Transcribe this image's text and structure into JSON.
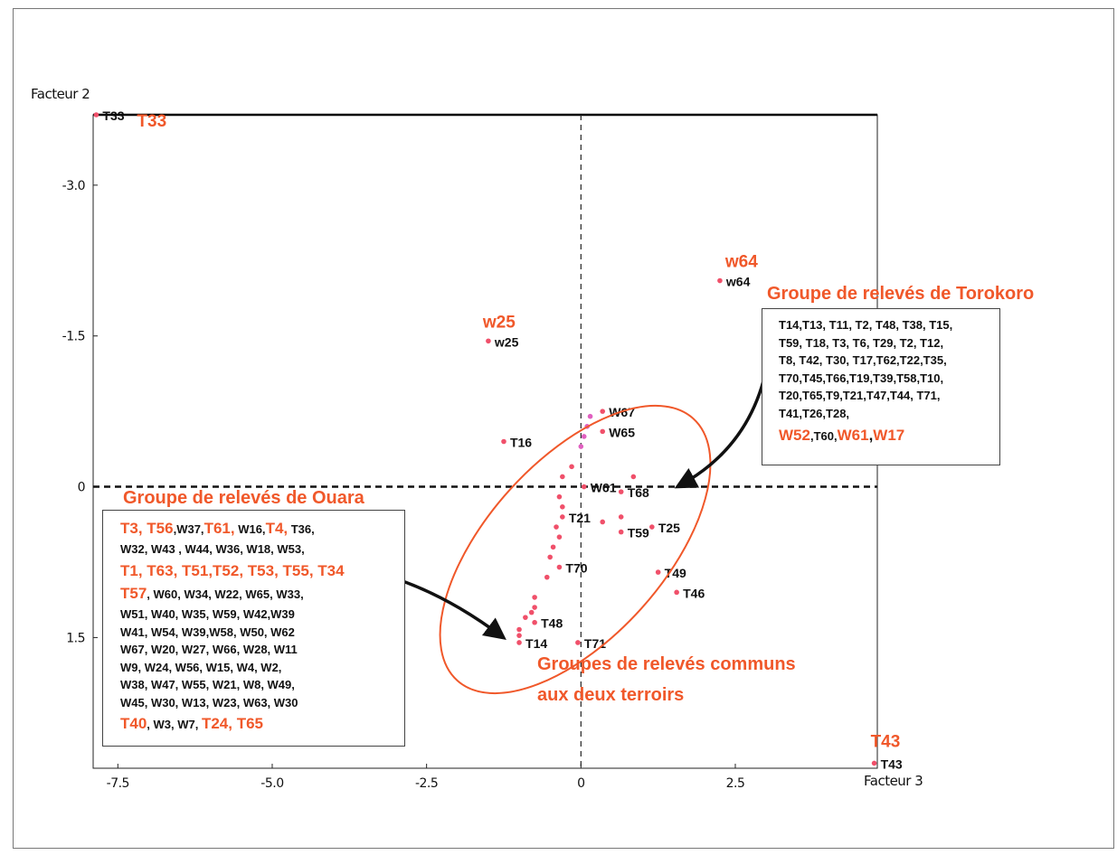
{
  "chart_data": {
    "type": "scatter",
    "xlabel": "Facteur 3",
    "ylabel": "Facteur 2",
    "xlim": [
      -7.9,
      4.8
    ],
    "ylim": [
      -3.7,
      2.8
    ],
    "x_ticks": [
      -7.5,
      -5.0,
      -2.5,
      0,
      2.5
    ],
    "x_tick_labels": [
      "-7.5",
      "-5.0",
      "-2.5",
      "0",
      "2.5"
    ],
    "y_ticks": [
      -3.0,
      -1.5,
      0,
      1.5
    ],
    "y_tick_labels": [
      "-3.0",
      "-1.5",
      "0",
      "1.5"
    ],
    "grid": false,
    "reference_lines": "dashed lines at x = 0 and y = 0",
    "colors": {
      "point": "#f0506a",
      "pink_point": "#e060c0",
      "accent": "#f0582a"
    },
    "labeled_points": [
      {
        "x": -7.85,
        "y": -3.7,
        "label": "T33",
        "big_label": "T33"
      },
      {
        "x": 2.25,
        "y": -2.05,
        "label": "w64",
        "big_label": "w64"
      },
      {
        "x": -1.5,
        "y": -1.45,
        "label": "w25",
        "big_label": "w25"
      },
      {
        "x": -1.25,
        "y": -0.45,
        "label": "T16"
      },
      {
        "x": 4.75,
        "y": 2.75,
        "label": "T43",
        "big_label": "T43"
      },
      {
        "x": 0.65,
        "y": 0.05,
        "label": "T68"
      },
      {
        "x": 1.15,
        "y": 0.4,
        "label": "T25"
      },
      {
        "x": 0.65,
        "y": 0.45,
        "label": "T59"
      },
      {
        "x": 1.25,
        "y": 0.85,
        "label": "T49"
      },
      {
        "x": 1.55,
        "y": 1.05,
        "label": "T46"
      },
      {
        "x": -0.05,
        "y": 1.55,
        "label": "T71"
      },
      {
        "x": -1.0,
        "y": 1.55,
        "label": "T14"
      },
      {
        "x": -0.75,
        "y": 1.35,
        "label": "T48"
      },
      {
        "x": -0.35,
        "y": 0.8,
        "label": "T70"
      },
      {
        "x": -0.3,
        "y": 0.3,
        "label": "T21"
      },
      {
        "x": 0.05,
        "y": 0.0,
        "label": "W61"
      },
      {
        "x": 0.35,
        "y": -0.75,
        "label": "W67"
      },
      {
        "x": 0.35,
        "y": -0.55,
        "label": "W65"
      }
    ],
    "unlabeled_points": [
      {
        "x": 0.15,
        "y": -0.7
      },
      {
        "x": 0.1,
        "y": -0.6
      },
      {
        "x": 0.05,
        "y": -0.5
      },
      {
        "x": 0.0,
        "y": -0.4
      },
      {
        "x": -0.15,
        "y": -0.2
      },
      {
        "x": -0.3,
        "y": -0.1
      },
      {
        "x": -0.35,
        "y": 0.1
      },
      {
        "x": -0.3,
        "y": 0.2
      },
      {
        "x": -0.4,
        "y": 0.4
      },
      {
        "x": -0.35,
        "y": 0.5
      },
      {
        "x": -0.45,
        "y": 0.6
      },
      {
        "x": -0.5,
        "y": 0.7
      },
      {
        "x": -0.55,
        "y": 0.9
      },
      {
        "x": -0.75,
        "y": 1.1
      },
      {
        "x": -0.75,
        "y": 1.2
      },
      {
        "x": -0.8,
        "y": 1.25
      },
      {
        "x": -0.9,
        "y": 1.3
      },
      {
        "x": -1.0,
        "y": 1.42
      },
      {
        "x": -1.0,
        "y": 1.48
      },
      {
        "x": 0.85,
        "y": -0.1
      },
      {
        "x": 0.65,
        "y": 0.3
      },
      {
        "x": 0.35,
        "y": 0.35
      }
    ],
    "annotations": [
      "Groupe de relevés de Torokoro",
      "Groupe de relevés de Ouara",
      "Groupes de relevés communs aux deux terroirs"
    ]
  },
  "axis_titles": {
    "y": "Facteur 2",
    "x": "Facteur 3"
  },
  "torokoro": {
    "title": "Groupe de relevés de Torokoro",
    "lines": [
      "T14,T13, T11, T2, T48, T38, T15,",
      "T59, T18, T3, T6, T29, T2, T12,",
      "T8, T42, T30, T17,T62,T22,T35,",
      "T70,T45,T66,T19,T39,T58,T10,",
      "T20,T65,T9,T21,T47,T44, T71,",
      "T41,T26,T28,"
    ],
    "w52": "W52",
    "t60": ",T60,",
    "w61": "W61",
    "comma": ",",
    "w17": "W17"
  },
  "ouara": {
    "title": "Groupe de relevés de Ouara",
    "l1_a": "T3, T56",
    "l1_b": ",W37,",
    "l1_c": "T61,",
    "l1_d": " W16,",
    "l1_e": "T4,",
    "l1_f": " T36,",
    "l2": "W32, W43 , W44, W36, W18, W53,",
    "l3": "T1, T63, T51,T52, T53, T55, T34",
    "l4_a": "T57",
    "l4_b": ", W60, W34, W22, W65, W33,",
    "lines": [
      "W51, W40, W35, W59, W42,W39",
      "W41, W54, W39,W58,  W50,  W62",
      "W67, W20, W27,  W66,  W28, W11",
      "W9, W24, W56,  W15, W4, W2,",
      "W38, W47, W55,  W21, W8, W49,",
      "W45, W30, W13, W23, W63, W30"
    ],
    "l_last_a": "T40",
    "l_last_b": ",  W3,  W7,  ",
    "l_last_c": "T24, T65"
  },
  "common": {
    "line1": "Groupes de relevés communs",
    "line2": "aux deux terroirs"
  }
}
